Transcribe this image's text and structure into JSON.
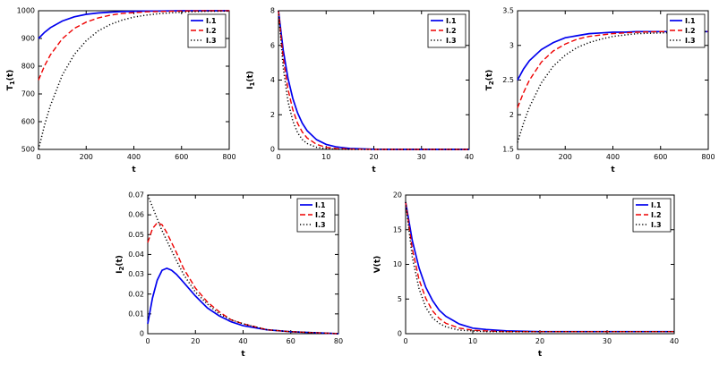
{
  "figure": {
    "background": "#ffffff"
  },
  "styles": {
    "solid_color": "#0000ee",
    "dashed_color": "#ee0000",
    "dotted_color": "#000000"
  },
  "chart_data": [
    {
      "id": "T1",
      "type": "line",
      "xlabel": "t",
      "ylabel": "T_1(t)",
      "xlim": [
        0,
        800
      ],
      "ylim": [
        500,
        1000
      ],
      "xticks": [
        0,
        200,
        400,
        600,
        800
      ],
      "yticks": [
        500,
        600,
        700,
        800,
        900,
        1000
      ],
      "legend_position": "top-right",
      "x": [
        0,
        25,
        50,
        100,
        150,
        200,
        250,
        300,
        350,
        400,
        450,
        500,
        600,
        700,
        800
      ],
      "series": [
        {
          "name": "I.1",
          "color": "#0000ee",
          "style": "solid",
          "values": [
            900,
            922,
            939,
            963,
            978,
            987,
            992,
            995,
            997,
            998,
            999,
            999,
            1000,
            1000,
            1000
          ]
        },
        {
          "name": "I.2",
          "color": "#ee0000",
          "style": "dashed",
          "values": [
            750,
            801,
            841,
            899,
            936,
            959,
            974,
            984,
            990,
            993,
            996,
            997,
            999,
            1000,
            1000
          ]
        },
        {
          "name": "I.3",
          "color": "#000000",
          "style": "dotted",
          "values": [
            500,
            587,
            658,
            768,
            842,
            892,
            927,
            950,
            966,
            977,
            984,
            989,
            995,
            998,
            999
          ]
        }
      ]
    },
    {
      "id": "I1",
      "type": "line",
      "xlabel": "t",
      "ylabel": "I_1(t)",
      "xlim": [
        0,
        40
      ],
      "ylim": [
        0,
        8
      ],
      "xticks": [
        0,
        10,
        20,
        30,
        40
      ],
      "yticks": [
        0,
        2,
        4,
        6,
        8
      ],
      "legend_position": "top-right",
      "x": [
        0,
        1,
        2,
        3,
        4,
        5,
        6,
        8,
        10,
        12,
        15,
        20,
        25,
        30,
        40
      ],
      "series": [
        {
          "name": "I.1",
          "color": "#0000ee",
          "style": "solid",
          "values": [
            8,
            5.73,
            4.11,
            2.94,
            2.11,
            1.51,
            1.08,
            0.56,
            0.29,
            0.15,
            0.05,
            0.01,
            0,
            0,
            0
          ]
        },
        {
          "name": "I.2",
          "color": "#ee0000",
          "style": "dashed",
          "values": [
            8,
            5.28,
            3.48,
            2.29,
            1.51,
            1.0,
            0.66,
            0.29,
            0.12,
            0.05,
            0.02,
            0,
            0,
            0,
            0
          ]
        },
        {
          "name": "I.3",
          "color": "#000000",
          "style": "dotted",
          "values": [
            8,
            4.72,
            2.78,
            1.64,
            0.97,
            0.57,
            0.34,
            0.12,
            0.04,
            0.01,
            0,
            0,
            0,
            0,
            0
          ]
        }
      ]
    },
    {
      "id": "T2",
      "type": "line",
      "xlabel": "t",
      "ylabel": "T_2(t)",
      "xlim": [
        0,
        800
      ],
      "ylim": [
        1.5,
        3.5
      ],
      "xticks": [
        0,
        200,
        400,
        600,
        800
      ],
      "yticks": [
        1.5,
        2,
        2.5,
        3,
        3.5
      ],
      "legend_position": "top-right",
      "x": [
        0,
        25,
        50,
        100,
        150,
        200,
        250,
        300,
        350,
        400,
        450,
        500,
        600,
        700,
        800
      ],
      "series": [
        {
          "name": "I.1",
          "color": "#0000ee",
          "style": "solid",
          "values": [
            2.5,
            2.66,
            2.78,
            2.94,
            3.04,
            3.11,
            3.14,
            3.17,
            3.18,
            3.19,
            3.19,
            3.2,
            3.2,
            3.2,
            3.2
          ]
        },
        {
          "name": "I.2",
          "color": "#ee0000",
          "style": "dashed",
          "values": [
            2.1,
            2.32,
            2.5,
            2.76,
            2.92,
            3.02,
            3.09,
            3.13,
            3.15,
            3.17,
            3.18,
            3.19,
            3.2,
            3.2,
            3.2
          ]
        },
        {
          "name": "I.3",
          "color": "#000000",
          "style": "dotted",
          "values": [
            1.6,
            1.88,
            2.11,
            2.46,
            2.7,
            2.86,
            2.97,
            3.04,
            3.09,
            3.13,
            3.15,
            3.17,
            3.18,
            3.19,
            3.2
          ]
        }
      ]
    },
    {
      "id": "I2",
      "type": "line",
      "xlabel": "t",
      "ylabel": "I_2(t)",
      "xlim": [
        0,
        80
      ],
      "ylim": [
        0,
        0.07
      ],
      "xticks": [
        0,
        20,
        40,
        60,
        80
      ],
      "yticks": [
        0,
        0.01,
        0.02,
        0.03,
        0.04,
        0.05,
        0.06,
        0.07
      ],
      "legend_position": "top-right",
      "x": [
        0,
        2,
        4,
        6,
        8,
        10,
        12,
        15,
        20,
        25,
        30,
        35,
        40,
        50,
        60,
        80
      ],
      "series": [
        {
          "name": "I.1",
          "color": "#0000ee",
          "style": "solid",
          "values": [
            0.005,
            0.018,
            0.027,
            0.032,
            0.033,
            0.032,
            0.03,
            0.026,
            0.019,
            0.013,
            0.009,
            0.006,
            0.004,
            0.002,
            0.001,
            0
          ]
        },
        {
          "name": "I.2",
          "color": "#ee0000",
          "style": "dashed",
          "values": [
            0.046,
            0.053,
            0.056,
            0.055,
            0.051,
            0.046,
            0.041,
            0.033,
            0.023,
            0.016,
            0.011,
            0.007,
            0.005,
            0.002,
            0.001,
            0
          ]
        },
        {
          "name": "I.3",
          "color": "#000000",
          "style": "dotted",
          "values": [
            0.07,
            0.064,
            0.058,
            0.052,
            0.047,
            0.042,
            0.037,
            0.03,
            0.021,
            0.015,
            0.01,
            0.007,
            0.005,
            0.002,
            0.001,
            0
          ]
        }
      ]
    },
    {
      "id": "V",
      "type": "line",
      "xlabel": "t",
      "ylabel": "V(t)",
      "xlim": [
        0,
        40
      ],
      "ylim": [
        0,
        20
      ],
      "xticks": [
        0,
        10,
        20,
        30,
        40
      ],
      "yticks": [
        0,
        5,
        10,
        15,
        20
      ],
      "legend_position": "top-right",
      "x": [
        0,
        1,
        2,
        3,
        4,
        5,
        6,
        8,
        10,
        12,
        15,
        20,
        25,
        30,
        40
      ],
      "series": [
        {
          "name": "I.1",
          "color": "#0000ee",
          "style": "solid",
          "values": [
            19,
            13.4,
            9.5,
            6.7,
            4.8,
            3.4,
            2.5,
            1.4,
            0.8,
            0.6,
            0.4,
            0.3,
            0.3,
            0.3,
            0.3
          ]
        },
        {
          "name": "I.2",
          "color": "#ee0000",
          "style": "dashed",
          "values": [
            19,
            12.2,
            7.8,
            5.1,
            3.3,
            2.2,
            1.5,
            0.8,
            0.5,
            0.4,
            0.3,
            0.3,
            0.3,
            0.3,
            0.3
          ]
        },
        {
          "name": "I.3",
          "color": "#000000",
          "style": "dotted",
          "values": [
            19,
            11.0,
            6.5,
            3.8,
            2.3,
            1.5,
            1.0,
            0.5,
            0.4,
            0.3,
            0.3,
            0.3,
            0.3,
            0.3,
            0.3
          ]
        }
      ]
    }
  ]
}
